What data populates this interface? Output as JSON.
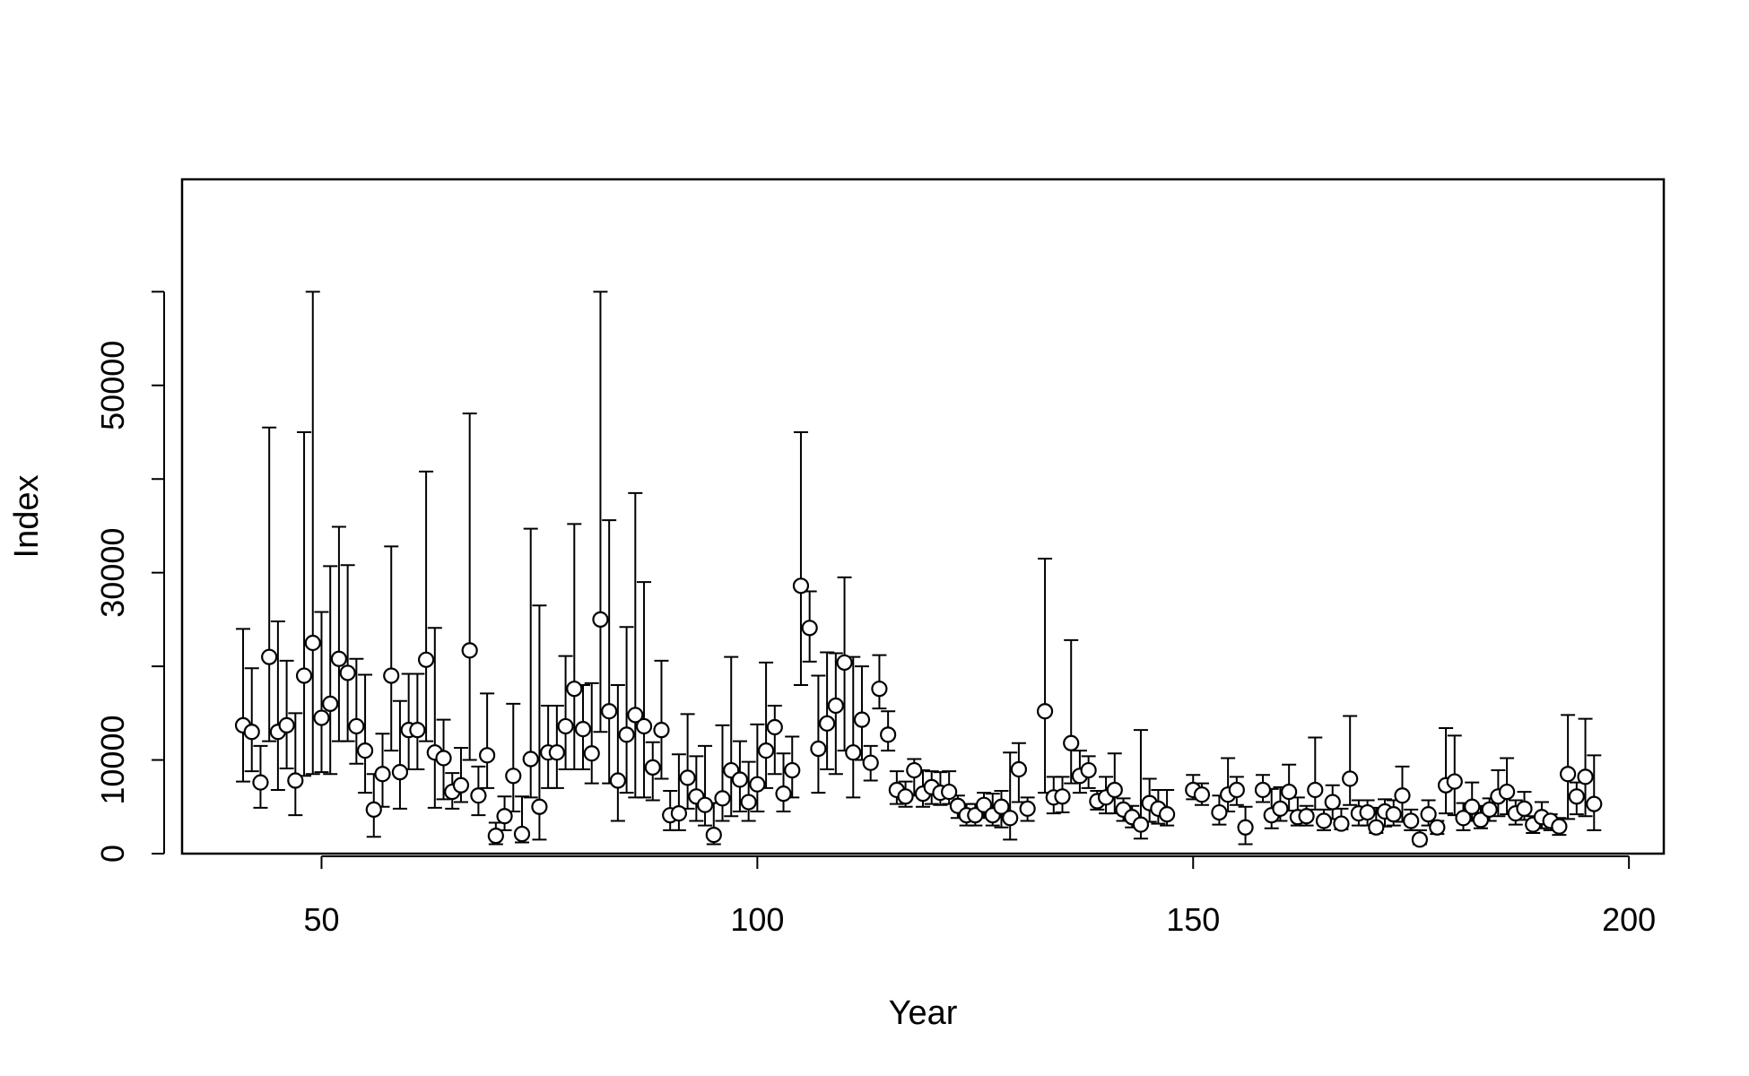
{
  "chart_data": {
    "type": "scatter",
    "title": "",
    "xlabel": "Year",
    "ylabel": "Index",
    "xlim": [
      34,
      204
    ],
    "ylim": [
      0,
      72000
    ],
    "x_ticks": [
      50,
      100,
      150,
      200
    ],
    "y_ticks": [
      0,
      10000,
      30000,
      50000
    ],
    "x_tick_labels": [
      "50",
      "100",
      "150",
      "200"
    ],
    "y_tick_labels": [
      "0",
      "10000",
      "30000",
      "50000"
    ],
    "grid": false,
    "legend": "none",
    "marker": "open-circle",
    "error_bars": true,
    "colors": {
      "point_fill": "#ffffff",
      "stroke": "#000000"
    },
    "series": [
      {
        "x": [
          41,
          42,
          43,
          44,
          45,
          46,
          47,
          48,
          49,
          50,
          51,
          52,
          53,
          54,
          55,
          56,
          57,
          58,
          59,
          60,
          61,
          62,
          63,
          64,
          65,
          66,
          67,
          68,
          69,
          70,
          71,
          72,
          73,
          74,
          75,
          76,
          77,
          78,
          79,
          80,
          81,
          82,
          83,
          84,
          85,
          86,
          87,
          88,
          89,
          90,
          91,
          92,
          93,
          94,
          95,
          96,
          97,
          98,
          99,
          100,
          101,
          102,
          103,
          104,
          105,
          106,
          107,
          108,
          109,
          110,
          111,
          112,
          113,
          114,
          115,
          116,
          117,
          118,
          119,
          120,
          121,
          122,
          123,
          124,
          125,
          126,
          127,
          128,
          129,
          130,
          131,
          133,
          134,
          135,
          136,
          137,
          138,
          139,
          140,
          141,
          142,
          143,
          144,
          145,
          146,
          147,
          150,
          151,
          153,
          154,
          155,
          156,
          158,
          159,
          160,
          161,
          162,
          163,
          164,
          165,
          166,
          167,
          168,
          169,
          170,
          171,
          172,
          173,
          174,
          175,
          176,
          177,
          178,
          179,
          180,
          181,
          182,
          183,
          184,
          185,
          186,
          187,
          188,
          189,
          190,
          191,
          192,
          193,
          194,
          195,
          196
        ],
        "y": [
          13700,
          13000,
          7600,
          21000,
          13000,
          13700,
          7800,
          19000,
          22500,
          14500,
          16000,
          20800,
          19300,
          13600,
          11000,
          4700,
          8500,
          19000,
          8700,
          13200,
          13200,
          20700,
          10800,
          10200,
          6600,
          7300,
          21700,
          6200,
          10500,
          1900,
          4000,
          8300,
          2100,
          10100,
          5000,
          10800,
          10800,
          13600,
          17600,
          13300,
          10700,
          25000,
          15200,
          7800,
          12700,
          14800,
          13600,
          9200,
          13200,
          4100,
          4300,
          8100,
          6100,
          5200,
          2000,
          5900,
          8900,
          7900,
          5500,
          7400,
          11000,
          13500,
          6400,
          8900,
          28600,
          24100,
          11200,
          13900,
          15800,
          20400,
          10800,
          14300,
          9700,
          17600,
          12700,
          6800,
          6100,
          8900,
          6400,
          7100,
          6500,
          6600,
          5100,
          4100,
          4100,
          5200,
          4100,
          5000,
          3800,
          9000,
          4800,
          15200,
          6000,
          6100,
          11800,
          8300,
          8900,
          5600,
          6000,
          6800,
          4700,
          3900,
          3100,
          5400,
          4800,
          4200,
          6800,
          6300,
          4400,
          6300,
          6800,
          2800,
          6800,
          4100,
          4800,
          6600,
          3900,
          4000,
          6800,
          3500,
          5500,
          3200,
          8000,
          4300,
          4400,
          2800,
          4500,
          4200,
          6200,
          3500,
          1500,
          4200,
          2800,
          7300,
          7700,
          3800,
          5000,
          3600,
          4700,
          6100,
          6600,
          4300,
          4800,
          3100,
          3900,
          3500,
          2900,
          8500,
          6100,
          8200,
          5300
        ],
        "y_low": [
          7700,
          8800,
          4900,
          12000,
          6800,
          9100,
          4100,
          8300,
          8500,
          8700,
          8500,
          12000,
          12000,
          9600,
          6500,
          1800,
          5000,
          11000,
          4800,
          9000,
          9000,
          12000,
          4900,
          5800,
          4800,
          5500,
          10000,
          4100,
          7000,
          1000,
          2500,
          4500,
          1200,
          6000,
          1500,
          7000,
          7000,
          9000,
          9000,
          9000,
          7500,
          13000,
          7500,
          3500,
          6500,
          6000,
          6000,
          5700,
          8000,
          2500,
          2500,
          4800,
          3500,
          3000,
          1000,
          3500,
          4000,
          4500,
          3500,
          4500,
          7000,
          8500,
          4500,
          6000,
          18000,
          20500,
          6500,
          9000,
          8500,
          11000,
          6000,
          10000,
          7800,
          15500,
          11000,
          5300,
          5000,
          6200,
          5000,
          5300,
          5200,
          5300,
          3800,
          3000,
          3000,
          3800,
          3000,
          2800,
          1500,
          5500,
          3500,
          6500,
          4300,
          4400,
          7500,
          6500,
          7000,
          4700,
          4300,
          4300,
          3500,
          2800,
          1600,
          3400,
          3200,
          3000,
          5800,
          5200,
          3100,
          4500,
          5200,
          1000,
          5500,
          2700,
          3500,
          4600,
          3000,
          3000,
          4700,
          2500,
          3700,
          2600,
          5200,
          3000,
          3000,
          2200,
          2900,
          3000,
          3400,
          2500,
          1000,
          3000,
          2100,
          4300,
          4100,
          2500,
          3500,
          2700,
          3500,
          4000,
          4200,
          3100,
          3600,
          2200,
          2700,
          2500,
          2000,
          3700,
          4200,
          4000,
          2500
        ],
        "y_high": [
          24000,
          19800,
          11500,
          45500,
          24800,
          20600,
          15000,
          45000,
          60000,
          25800,
          30700,
          34900,
          30800,
          20800,
          19100,
          8500,
          12800,
          32800,
          16300,
          19200,
          19200,
          40800,
          24100,
          14300,
          8600,
          11300,
          47000,
          9300,
          17100,
          3300,
          6100,
          16000,
          6100,
          34700,
          26500,
          15800,
          15800,
          21100,
          35200,
          18000,
          18200,
          60000,
          35600,
          18000,
          24200,
          38500,
          29000,
          11900,
          20600,
          6700,
          10600,
          14900,
          10400,
          11500,
          5400,
          13700,
          21000,
          12000,
          9800,
          13800,
          20400,
          15800,
          10700,
          12500,
          45000,
          28000,
          19000,
          21500,
          21400,
          29500,
          21000,
          20000,
          11500,
          21200,
          15200,
          8800,
          7700,
          10100,
          8900,
          8800,
          8700,
          8800,
          6200,
          5300,
          5300,
          6500,
          6400,
          6700,
          10800,
          11800,
          6000,
          31500,
          8200,
          8200,
          22800,
          11000,
          10400,
          6700,
          8200,
          10700,
          5900,
          5100,
          13200,
          8000,
          6800,
          6800,
          8400,
          7500,
          6200,
          10200,
          8200,
          5000,
          8400,
          6900,
          7100,
          9500,
          6000,
          5100,
          12400,
          4700,
          7300,
          4800,
          14700,
          5700,
          5700,
          4900,
          5800,
          5700,
          9300,
          4700,
          2500,
          5700,
          3500,
          13400,
          12600,
          5400,
          7600,
          5100,
          5900,
          8900,
          10200,
          5700,
          6600,
          4000,
          5500,
          4200,
          3800,
          14800,
          7600,
          14400,
          10500
        ]
      }
    ]
  }
}
